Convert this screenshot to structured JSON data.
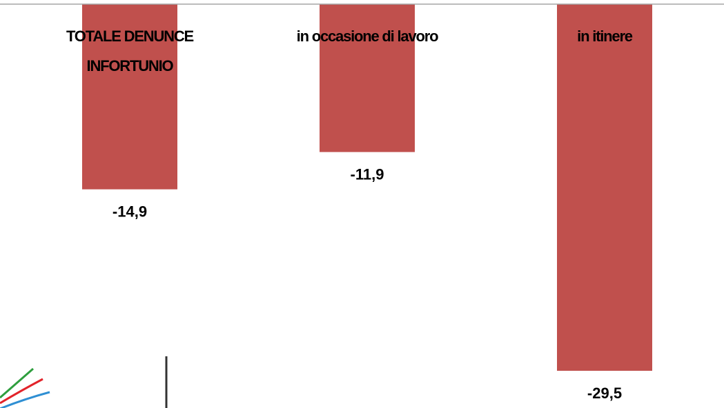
{
  "chart_data": {
    "type": "bar",
    "categories": [
      "TOTALE DENUNCE INFORTUNIO",
      "in occasione di lavoro",
      "in itinere"
    ],
    "category_label_lines": [
      [
        "TOTALE DENUNCE",
        "INFORTUNIO"
      ],
      [
        "in occasione di lavoro"
      ],
      [
        "in itinere"
      ]
    ],
    "values": [
      -14.9,
      -11.9,
      -29.5
    ],
    "value_labels": [
      "-14,9",
      "-11,9",
      "-29,5"
    ],
    "title": "",
    "xlabel": "",
    "ylabel": "",
    "ylim": [
      -31,
      0
    ],
    "grid": false,
    "legend": "none",
    "bar_color": "#C0504D",
    "axis_color": "#A6A6A6"
  },
  "logo": {
    "icon": "inail-logo-icon",
    "colors": [
      "#2E9E3E",
      "#E2232A",
      "#2F8FD3"
    ]
  }
}
